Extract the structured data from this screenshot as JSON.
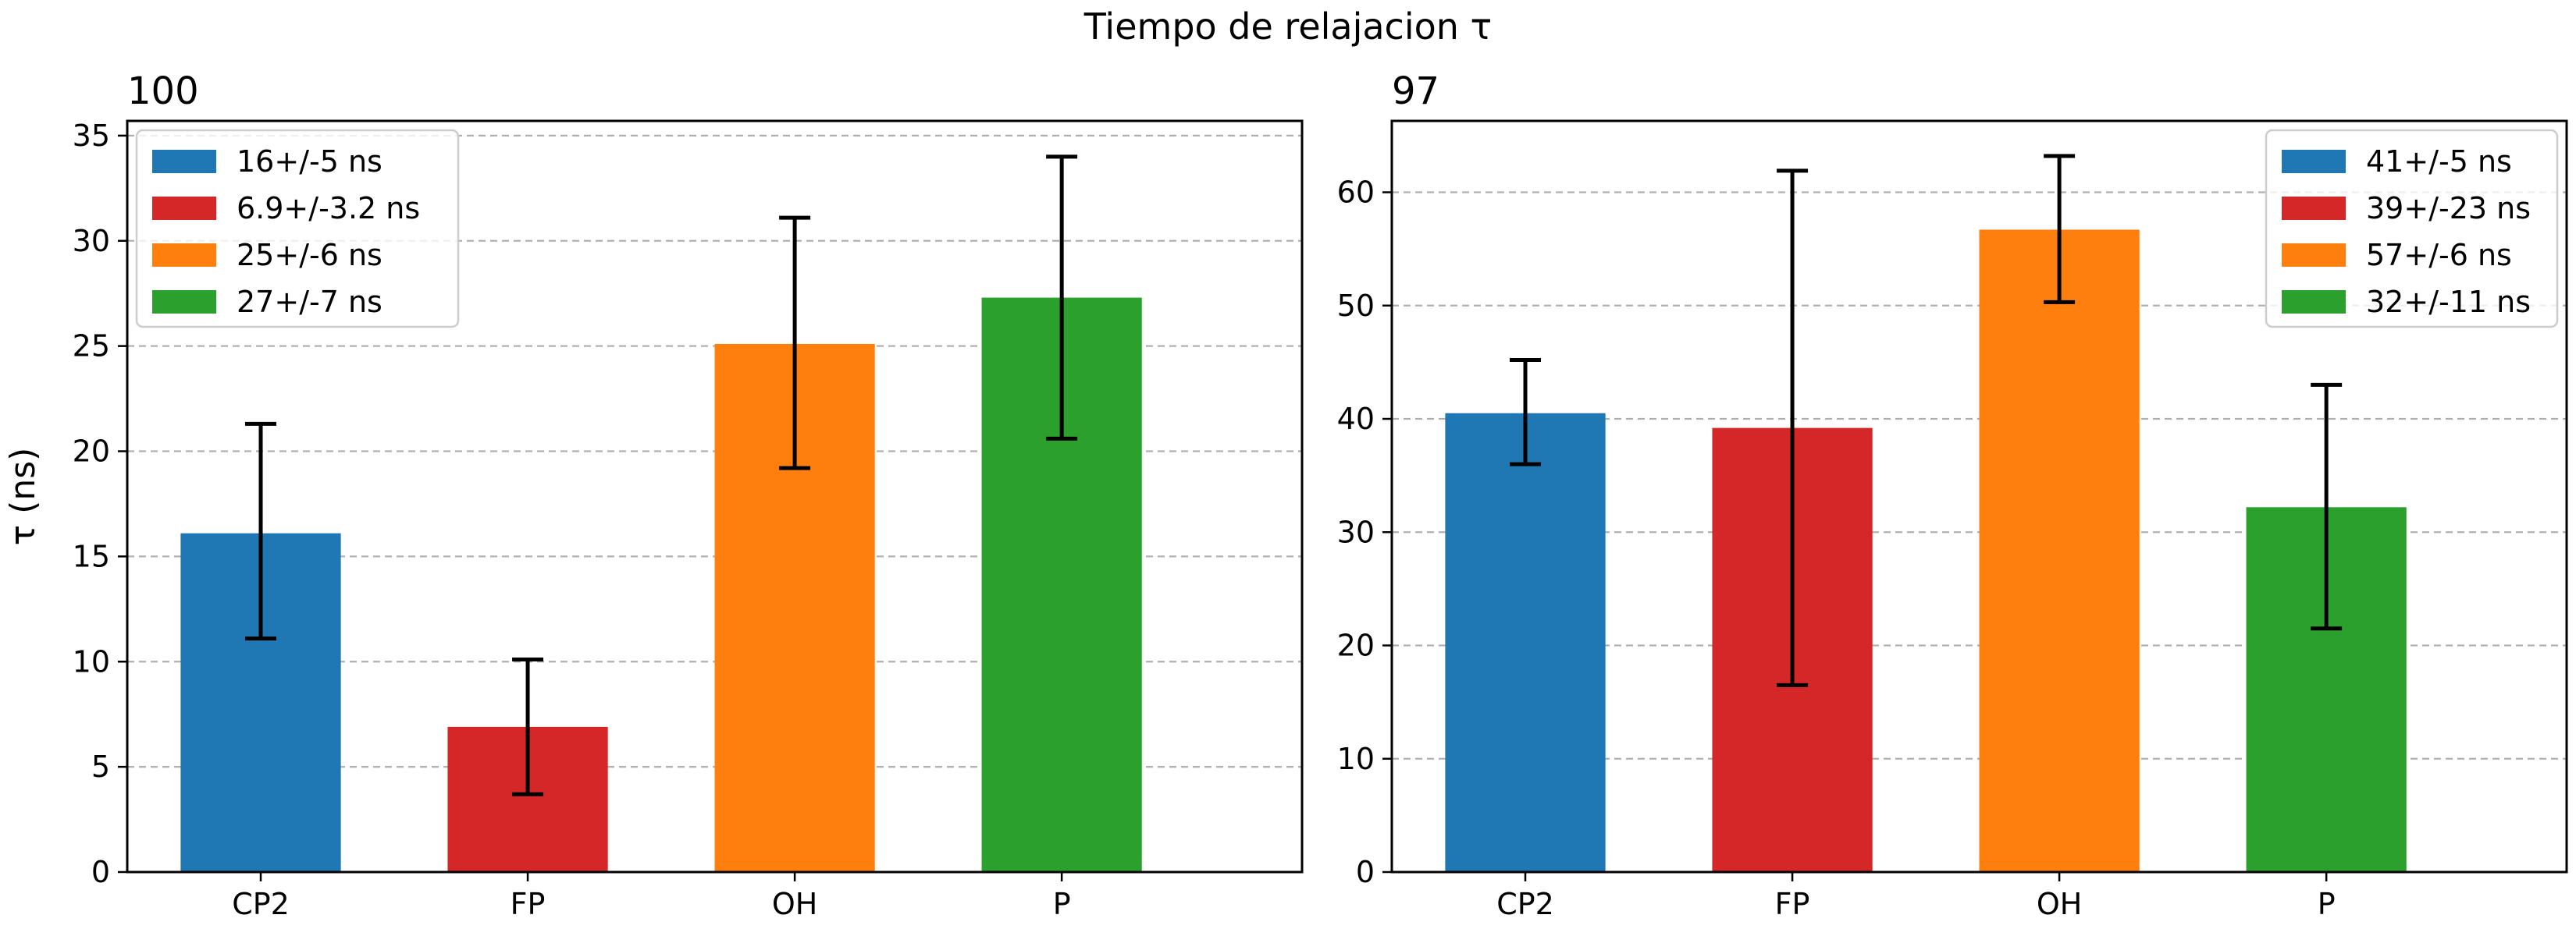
{
  "figure": {
    "suptitle": "Tiempo de relajacion τ"
  },
  "colors": {
    "blue": "#1f77b4",
    "red": "#d62728",
    "orange": "#ff7f0e",
    "green": "#2ca02c",
    "grid": "#b0b0b0",
    "errorbar": "#000000"
  },
  "chart_data": [
    {
      "type": "bar",
      "title": "100",
      "ylabel": "τ (ns)",
      "xlabel": "",
      "categories": [
        "CP2",
        "FP",
        "OH",
        "P"
      ],
      "values": [
        16.1,
        6.9,
        25.1,
        27.3
      ],
      "err_low": [
        11.1,
        3.7,
        19.2,
        20.6
      ],
      "err_high": [
        21.3,
        10.1,
        31.1,
        34.0
      ],
      "colors": [
        "#1f77b4",
        "#d62728",
        "#ff7f0e",
        "#2ca02c"
      ],
      "ylim": [
        0,
        35.7
      ],
      "yticks": [
        0,
        5,
        10,
        15,
        20,
        25,
        30,
        35
      ],
      "grid": "y dashed",
      "legend": {
        "placement": "upper-left",
        "entries": [
          "16+/-5 ns",
          "6.9+/-3.2 ns",
          "25+/-6 ns",
          "27+/-7 ns"
        ]
      }
    },
    {
      "type": "bar",
      "title": "97",
      "ylabel": "",
      "xlabel": "",
      "categories": [
        "CP2",
        "FP",
        "OH",
        "P"
      ],
      "values": [
        40.5,
        39.2,
        56.7,
        32.2
      ],
      "err_low": [
        36.0,
        16.5,
        50.3,
        21.5
      ],
      "err_high": [
        45.2,
        61.9,
        63.2,
        43.0
      ],
      "colors": [
        "#1f77b4",
        "#d62728",
        "#ff7f0e",
        "#2ca02c"
      ],
      "ylim": [
        0,
        66.3
      ],
      "yticks": [
        0,
        10,
        20,
        30,
        40,
        50,
        60
      ],
      "grid": "y dashed",
      "legend": {
        "placement": "upper-right",
        "entries": [
          "41+/-5 ns",
          "39+/-23 ns",
          "57+/-6 ns",
          "32+/-11 ns"
        ]
      }
    }
  ]
}
